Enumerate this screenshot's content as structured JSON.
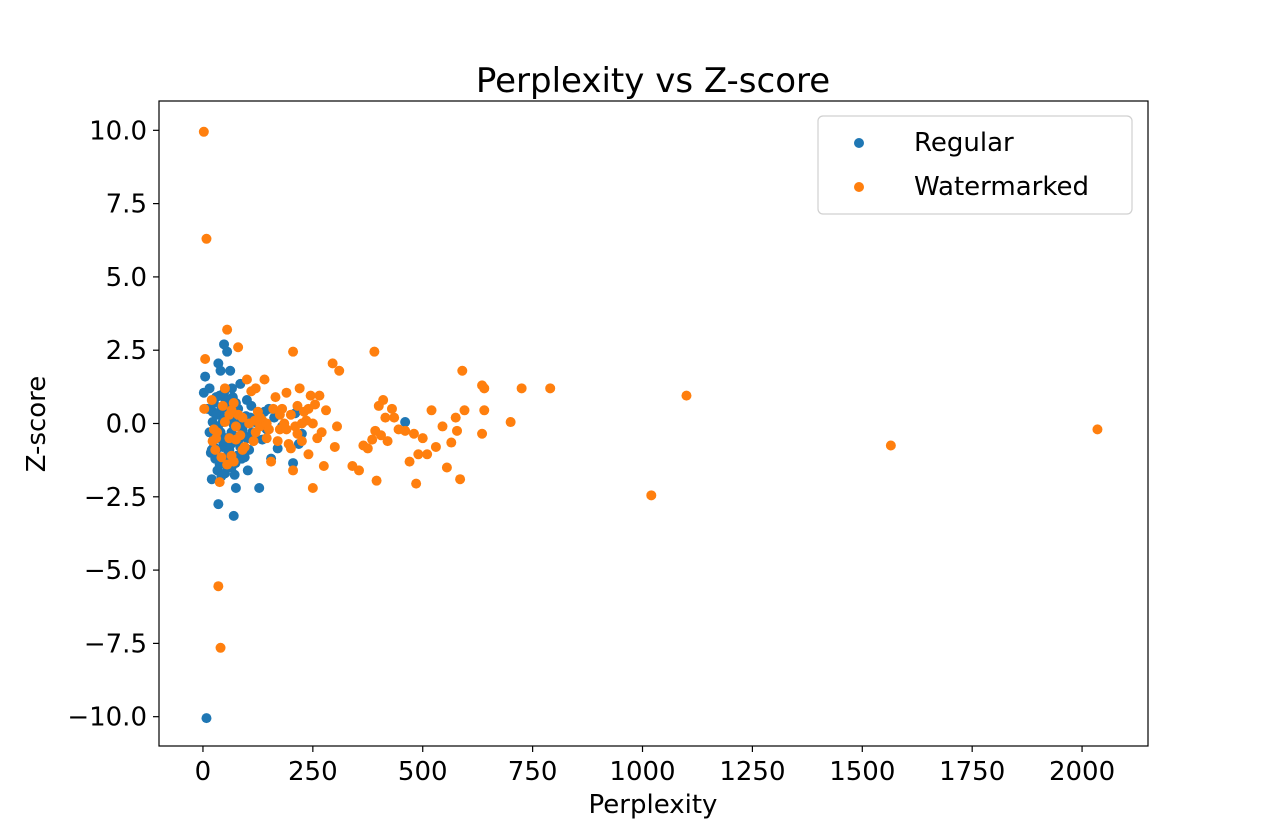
{
  "chart_data": {
    "type": "scatter",
    "title": "Perplexity vs Z-score",
    "xlabel": "Perplexity",
    "ylabel": "Z-score",
    "xlim": [
      -100,
      2150
    ],
    "ylim": [
      -11.0,
      11.0
    ],
    "xticks": [
      0,
      250,
      500,
      750,
      1000,
      1250,
      1500,
      1750,
      2000
    ],
    "yticks": [
      -10.0,
      -7.5,
      -5.0,
      -2.5,
      0.0,
      2.5,
      5.0,
      7.5,
      10.0
    ],
    "xtick_labels": [
      "0",
      "250",
      "500",
      "750",
      "1000",
      "1250",
      "1500",
      "1750",
      "2000"
    ],
    "ytick_labels": [
      "−10.0",
      "−7.5",
      "−5.0",
      "−2.5",
      "0.0",
      "2.5",
      "5.0",
      "7.5",
      "10.0"
    ],
    "grid": false,
    "legend_position": "top-right",
    "series": [
      {
        "name": "Regular",
        "color": "#1f77b4",
        "points": [
          [
            5,
            1.6
          ],
          [
            2,
            1.05
          ],
          [
            10,
            0.5
          ],
          [
            15,
            1.2
          ],
          [
            15,
            -0.3
          ],
          [
            18,
            -1.0
          ],
          [
            20,
            -1.9
          ],
          [
            22,
            0.4
          ],
          [
            22,
            0.05
          ],
          [
            25,
            -0.5
          ],
          [
            25,
            0.7
          ],
          [
            28,
            -1.2
          ],
          [
            30,
            0.9
          ],
          [
            30,
            -0.9
          ],
          [
            32,
            -0.1
          ],
          [
            33,
            -1.6
          ],
          [
            35,
            2.05
          ],
          [
            35,
            -2.75
          ],
          [
            36,
            0.3
          ],
          [
            38,
            -1.4
          ],
          [
            40,
            -0.3
          ],
          [
            40,
            1.8
          ],
          [
            42,
            0.5
          ],
          [
            45,
            -0.8
          ],
          [
            45,
            0.05
          ],
          [
            48,
            2.7
          ],
          [
            48,
            1.05
          ],
          [
            50,
            -1.7
          ],
          [
            50,
            0.85
          ],
          [
            52,
            -0.5
          ],
          [
            55,
            2.45
          ],
          [
            55,
            0.2
          ],
          [
            55,
            -1.2
          ],
          [
            58,
            0.6
          ],
          [
            60,
            -0.9
          ],
          [
            60,
            0.45
          ],
          [
            62,
            1.8
          ],
          [
            64,
            0.15
          ],
          [
            65,
            -0.3
          ],
          [
            65,
            -1.5
          ],
          [
            68,
            0.9
          ],
          [
            70,
            0.3
          ],
          [
            70,
            -3.15
          ],
          [
            72,
            -1.75
          ],
          [
            75,
            0.7
          ],
          [
            75,
            -2.2
          ],
          [
            78,
            -1.1
          ],
          [
            80,
            -0.6
          ],
          [
            82,
            0.0
          ],
          [
            85,
            1.35
          ],
          [
            85,
            -0.8
          ],
          [
            88,
            -1.2
          ],
          [
            90,
            0.1
          ],
          [
            92,
            -0.4
          ],
          [
            95,
            -1.15
          ],
          [
            98,
            0.25
          ],
          [
            100,
            0.8
          ],
          [
            100,
            -0.5
          ],
          [
            102,
            -1.6
          ],
          [
            105,
            -0.9
          ],
          [
            108,
            0.2
          ],
          [
            110,
            0.6
          ],
          [
            112,
            -0.3
          ],
          [
            118,
            0.05
          ],
          [
            120,
            -0.5
          ],
          [
            128,
            -2.2
          ],
          [
            130,
            -0.1
          ],
          [
            135,
            -0.55
          ],
          [
            140,
            0.4
          ],
          [
            145,
            -0.2
          ],
          [
            150,
            0.5
          ],
          [
            155,
            -1.2
          ],
          [
            162,
            0.2
          ],
          [
            170,
            -0.85
          ],
          [
            180,
            -0.1
          ],
          [
            205,
            -1.35
          ],
          [
            210,
            0.35
          ],
          [
            218,
            -0.7
          ],
          [
            225,
            -0.35
          ],
          [
            460,
            0.05
          ],
          [
            8,
            -10.05
          ],
          [
            25,
            -0.8
          ],
          [
            45,
            -0.6
          ],
          [
            60,
            0.55
          ],
          [
            30,
            0.3
          ],
          [
            58,
            -1.0
          ],
          [
            70,
            -0.05
          ],
          [
            42,
            -1.8
          ],
          [
            35,
            -0.2
          ],
          [
            52,
            0.8
          ],
          [
            80,
            0.5
          ],
          [
            64,
            -0.7
          ],
          [
            27,
            -0.15
          ],
          [
            90,
            -0.2
          ],
          [
            48,
            0.2
          ],
          [
            38,
            0.95
          ],
          [
            66,
            1.2
          ],
          [
            74,
            -1.35
          ],
          [
            56,
            -1.5
          ],
          [
            20,
            -0.9
          ]
        ]
      },
      {
        "name": "Watermarked",
        "color": "#ff7f0e",
        "points": [
          [
            2,
            9.95
          ],
          [
            8,
            6.3
          ],
          [
            5,
            2.2
          ],
          [
            3,
            0.5
          ],
          [
            35,
            -5.55
          ],
          [
            40,
            -7.65
          ],
          [
            55,
            3.2
          ],
          [
            80,
            2.6
          ],
          [
            205,
            2.45
          ],
          [
            390,
            2.45
          ],
          [
            295,
            2.05
          ],
          [
            310,
            1.8
          ],
          [
            590,
            1.8
          ],
          [
            640,
            1.2
          ],
          [
            635,
            1.3
          ],
          [
            725,
            1.2
          ],
          [
            790,
            1.2
          ],
          [
            1100,
            0.95
          ],
          [
            700,
            0.05
          ],
          [
            1020,
            -2.45
          ],
          [
            1565,
            -0.75
          ],
          [
            2035,
            -0.2
          ],
          [
            20,
            0.8
          ],
          [
            25,
            -0.2
          ],
          [
            28,
            -0.9
          ],
          [
            32,
            -0.3
          ],
          [
            38,
            -2.0
          ],
          [
            45,
            0.6
          ],
          [
            50,
            1.2
          ],
          [
            55,
            -1.4
          ],
          [
            60,
            0.3
          ],
          [
            65,
            -1.1
          ],
          [
            70,
            0.7
          ],
          [
            75,
            -0.1
          ],
          [
            80,
            0.3
          ],
          [
            85,
            -0.4
          ],
          [
            90,
            0.2
          ],
          [
            95,
            -0.8
          ],
          [
            100,
            1.5
          ],
          [
            105,
            0.0
          ],
          [
            110,
            1.1
          ],
          [
            115,
            -0.6
          ],
          [
            120,
            1.2
          ],
          [
            125,
            0.4
          ],
          [
            130,
            -0.1
          ],
          [
            135,
            0.1
          ],
          [
            140,
            1.5
          ],
          [
            145,
            -0.5
          ],
          [
            150,
            -0.2
          ],
          [
            155,
            -1.3
          ],
          [
            160,
            0.5
          ],
          [
            165,
            0.9
          ],
          [
            170,
            -0.6
          ],
          [
            175,
            -0.2
          ],
          [
            180,
            0.5
          ],
          [
            185,
            0.0
          ],
          [
            190,
            1.05
          ],
          [
            195,
            -0.7
          ],
          [
            200,
            0.3
          ],
          [
            205,
            -1.6
          ],
          [
            210,
            -0.1
          ],
          [
            215,
            0.6
          ],
          [
            220,
            1.2
          ],
          [
            225,
            -0.6
          ],
          [
            230,
            0.4
          ],
          [
            235,
            0.1
          ],
          [
            240,
            -1.05
          ],
          [
            245,
            0.95
          ],
          [
            250,
            -2.2
          ],
          [
            255,
            0.65
          ],
          [
            260,
            -0.5
          ],
          [
            265,
            0.95
          ],
          [
            270,
            -0.3
          ],
          [
            275,
            -1.45
          ],
          [
            280,
            0.45
          ],
          [
            300,
            -0.8
          ],
          [
            305,
            -0.1
          ],
          [
            340,
            -1.45
          ],
          [
            355,
            -1.6
          ],
          [
            365,
            -0.75
          ],
          [
            375,
            -0.85
          ],
          [
            385,
            -0.55
          ],
          [
            392,
            -0.25
          ],
          [
            395,
            -1.95
          ],
          [
            400,
            0.6
          ],
          [
            405,
            -0.4
          ],
          [
            410,
            0.8
          ],
          [
            415,
            0.2
          ],
          [
            420,
            -0.6
          ],
          [
            430,
            0.5
          ],
          [
            435,
            0.2
          ],
          [
            445,
            -0.2
          ],
          [
            460,
            -0.25
          ],
          [
            470,
            -1.3
          ],
          [
            480,
            -0.35
          ],
          [
            485,
            -2.05
          ],
          [
            490,
            -1.05
          ],
          [
            500,
            -0.5
          ],
          [
            510,
            -1.05
          ],
          [
            520,
            0.45
          ],
          [
            530,
            -0.8
          ],
          [
            545,
            -0.1
          ],
          [
            555,
            -1.5
          ],
          [
            565,
            -0.65
          ],
          [
            575,
            0.2
          ],
          [
            578,
            -0.25
          ],
          [
            585,
            -1.9
          ],
          [
            595,
            0.45
          ],
          [
            635,
            -0.35
          ],
          [
            640,
            0.45
          ],
          [
            250,
            0.0
          ],
          [
            240,
            0.5
          ],
          [
            225,
            0.0
          ],
          [
            215,
            -0.35
          ],
          [
            200,
            -0.85
          ],
          [
            190,
            -0.2
          ],
          [
            175,
            0.3
          ],
          [
            145,
            0.0
          ],
          [
            130,
            0.2
          ],
          [
            120,
            -0.3
          ],
          [
            90,
            -0.9
          ],
          [
            75,
            -0.55
          ],
          [
            65,
            0.45
          ],
          [
            50,
            0.05
          ],
          [
            30,
            -0.5
          ],
          [
            22,
            -0.6
          ],
          [
            42,
            -1.15
          ],
          [
            60,
            -0.5
          ],
          [
            70,
            -1.3
          ],
          [
            118,
            0.1
          ]
        ]
      }
    ]
  }
}
